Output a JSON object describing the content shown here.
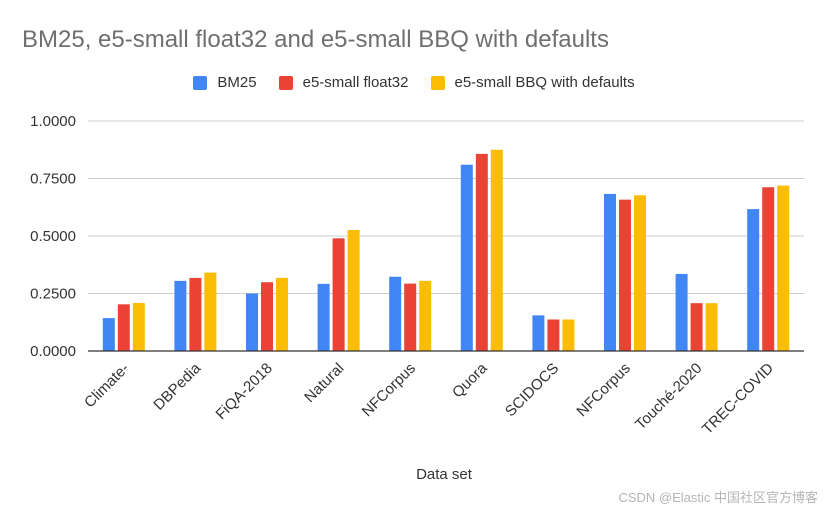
{
  "colors": {
    "BM25": "#4285f4",
    "e5-small float32": "#ea4335",
    "e5-small BBQ with defaults": "#fbbc04",
    "grid": "#cccccc",
    "axis": "#333333"
  },
  "watermark": "CSDN @Elastic 中国社区官方博客",
  "chart_data": {
    "type": "bar",
    "title": "BM25, e5-small float32 and e5-small BBQ with defaults",
    "xlabel": "Data set",
    "ylabel": "",
    "ylim": [
      0,
      1
    ],
    "yticks": [
      "0.0000",
      "0.2500",
      "0.5000",
      "0.7500",
      "1.0000"
    ],
    "grid": true,
    "legend_position": "top",
    "categories": [
      "Climate-",
      "DBPedia",
      "FiQA-2018",
      "Natural",
      "NFCorpus",
      "Quora",
      "SCIDOCS",
      "NFCorpus",
      "Touché-2020",
      "TREC-COVID"
    ],
    "series": [
      {
        "name": "BM25",
        "values": [
          0.143,
          0.305,
          0.25,
          0.292,
          0.323,
          0.81,
          0.155,
          0.683,
          0.335,
          0.617
        ]
      },
      {
        "name": "e5-small float32",
        "values": [
          0.203,
          0.318,
          0.299,
          0.49,
          0.293,
          0.857,
          0.137,
          0.658,
          0.208,
          0.712
        ]
      },
      {
        "name": "e5-small BBQ with defaults",
        "values": [
          0.209,
          0.341,
          0.318,
          0.526,
          0.305,
          0.875,
          0.137,
          0.677,
          0.208,
          0.719
        ]
      }
    ]
  }
}
